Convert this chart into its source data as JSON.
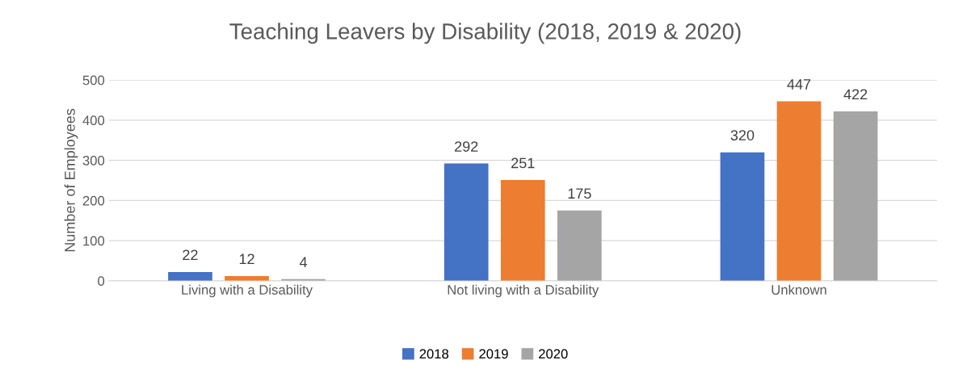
{
  "chart_data": {
    "type": "bar",
    "title": "Teaching Leavers by Disability (2018, 2019 & 2020)",
    "ylabel": "Number of Employees",
    "categories": [
      "Living with a Disability",
      "Not living with a Disability",
      "Unknown"
    ],
    "series": [
      {
        "name": "2018",
        "color": "#4472c4",
        "values": [
          22,
          292,
          320
        ]
      },
      {
        "name": "2019",
        "color": "#ed7d31",
        "values": [
          12,
          251,
          447
        ]
      },
      {
        "name": "2020",
        "color": "#a5a5a5",
        "values": [
          4,
          175,
          422
        ]
      }
    ],
    "ylim": [
      0,
      500
    ],
    "yticks": [
      0,
      100,
      200,
      300,
      400,
      500
    ],
    "grid": "y",
    "legend": "bottom",
    "data_labels": true
  }
}
